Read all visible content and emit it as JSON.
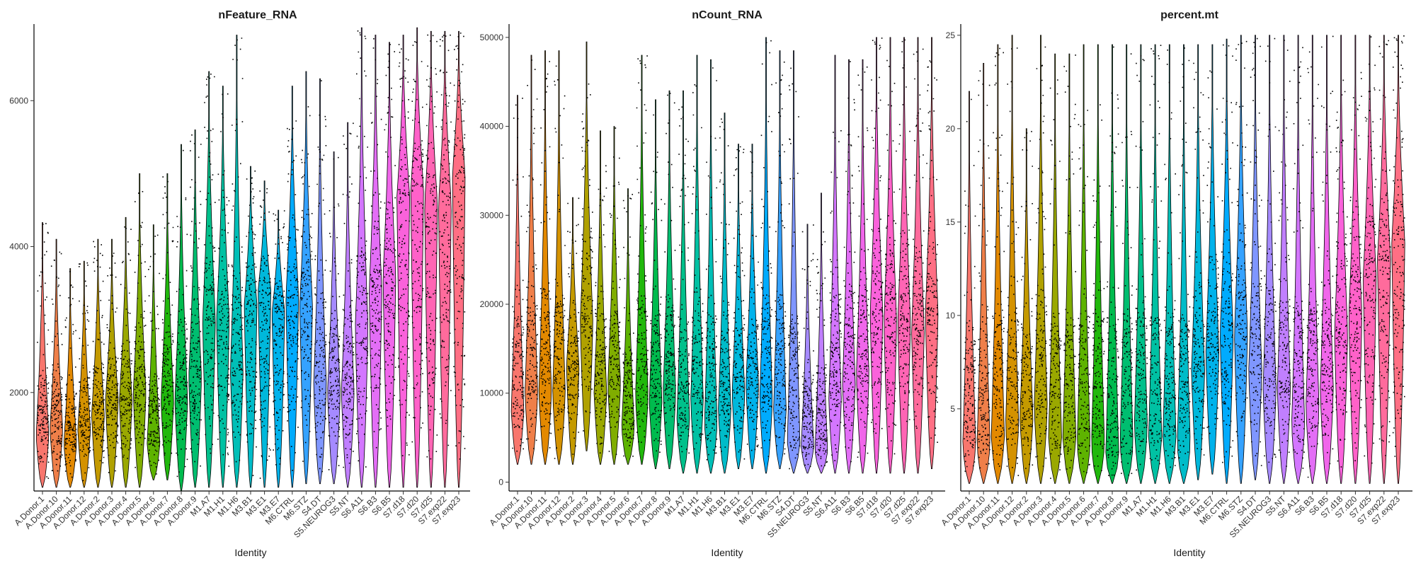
{
  "chart_data": [
    {
      "type": "violin",
      "title": "nFeature_RNA",
      "xlabel": "Identity",
      "ylabel": "",
      "ylim": [
        650,
        7050
      ],
      "yticks": [
        2000,
        4000,
        6000
      ],
      "categories": [
        "A.Donor.1",
        "A.Donor.10",
        "A.Donor.11",
        "A.Donor.12",
        "A.Donor.2",
        "A.Donor.3",
        "A.Donor.4",
        "A.Donor.5",
        "A.Donor.6",
        "A.Donor.7",
        "A.Donor.8",
        "A.Donor.9",
        "M1.A7",
        "M1.H1",
        "M1.H6",
        "M3.B1",
        "M3.E1",
        "M3.E7",
        "M6.CTRL",
        "M6.STZ",
        "S4.DT",
        "S5.NEUROG3",
        "S5.NT",
        "S6.A11",
        "S6.B3",
        "S6.B5",
        "S7.d18",
        "S7.d20",
        "S7.d25",
        "S7.exp22",
        "S7.exp23"
      ],
      "colors": [
        "#F8766D",
        "#EF7F49",
        "#E38900",
        "#D49200",
        "#C49A00",
        "#B0A100",
        "#9AA800",
        "#80AD00",
        "#5EB300",
        "#21B80C",
        "#00BB4E",
        "#00BE70",
        "#00C08B",
        "#00C1A3",
        "#00BFB7",
        "#00BCC9",
        "#00B8DB",
        "#00B2EB",
        "#00ABFD",
        "#35A2FF",
        "#7F96FF",
        "#A58AFF",
        "#C07FFF",
        "#D376FF",
        "#E36EF6",
        "#F066EA",
        "#FA62DB",
        "#FF61C9",
        "#FF65B4",
        "#FF6B9C",
        "#FF6F84"
      ],
      "series": [
        {
          "name": "min",
          "values": [
            700,
            700,
            700,
            700,
            700,
            700,
            700,
            700,
            800,
            800,
            650,
            700,
            700,
            700,
            700,
            700,
            700,
            700,
            700,
            750,
            750,
            750,
            700,
            700,
            700,
            700,
            700,
            700,
            700,
            700,
            700
          ]
        },
        {
          "name": "max",
          "values": [
            4330,
            4100,
            3700,
            3800,
            4100,
            4100,
            4400,
            5000,
            4300,
            5000,
            5400,
            5600,
            6400,
            6200,
            6900,
            5100,
            4900,
            4500,
            6200,
            6400,
            6300,
            5300,
            5700,
            7000,
            6900,
            6800,
            6900,
            7000,
            6950,
            6950,
            6950
          ]
        },
        {
          "name": "median",
          "values": [
            1400,
            1500,
            1300,
            1500,
            1700,
            1900,
            1900,
            2000,
            1300,
            1900,
            1900,
            2200,
            3000,
            3000,
            2300,
            3200,
            3400,
            3100,
            3300,
            3200,
            2100,
            2000,
            2000,
            2900,
            3400,
            3600,
            4700,
            4800,
            4600,
            4600,
            5000
          ]
        }
      ]
    },
    {
      "type": "violin",
      "title": "nCount_RNA",
      "xlabel": "Identity",
      "ylabel": "",
      "ylim": [
        -1000,
        51500
      ],
      "yticks": [
        0,
        10000,
        20000,
        30000,
        40000,
        50000
      ],
      "categories": [
        "A.Donor.1",
        "A.Donor.10",
        "A.Donor.11",
        "A.Donor.12",
        "A.Donor.2",
        "A.Donor.3",
        "A.Donor.4",
        "A.Donor.5",
        "A.Donor.6",
        "A.Donor.7",
        "A.Donor.8",
        "A.Donor.9",
        "M1.A7",
        "M1.H1",
        "M1.H6",
        "M3.B1",
        "M3.E1",
        "M3.E7",
        "M6.CTRL",
        "M6.STZ",
        "S4.DT",
        "S5.NEUROG3",
        "S5.NT",
        "S6.A11",
        "S6.B3",
        "S6.B5",
        "S7.d18",
        "S7.d20",
        "S7.d25",
        "S7.exp22",
        "S7.exp23"
      ],
      "colors": [
        "#F8766D",
        "#EF7F49",
        "#E38900",
        "#D49200",
        "#C49A00",
        "#B0A100",
        "#9AA800",
        "#80AD00",
        "#5EB300",
        "#21B80C",
        "#00BB4E",
        "#00BE70",
        "#00C08B",
        "#00C1A3",
        "#00BFB7",
        "#00BCC9",
        "#00B8DB",
        "#00B2EB",
        "#00ABFD",
        "#35A2FF",
        "#7F96FF",
        "#A58AFF",
        "#C07FFF",
        "#D376FF",
        "#E36EF6",
        "#F066EA",
        "#FA62DB",
        "#FF61C9",
        "#FF65B4",
        "#FF6B9C",
        "#FF6F84"
      ],
      "series": [
        {
          "name": "min",
          "values": [
            2000,
            2000,
            2000,
            2000,
            2000,
            3500,
            2000,
            2000,
            2000,
            2000,
            1500,
            1500,
            1000,
            1000,
            1000,
            1000,
            1500,
            1500,
            1000,
            1500,
            1000,
            1000,
            1000,
            1000,
            1000,
            1000,
            1000,
            1000,
            1000,
            1000,
            1500
          ]
        },
        {
          "name": "max",
          "values": [
            43500,
            48000,
            48500,
            48500,
            32000,
            49500,
            39500,
            40000,
            33000,
            48000,
            43000,
            44000,
            44000,
            48000,
            47500,
            41500,
            38000,
            38000,
            50000,
            48500,
            48500,
            29000,
            32500,
            48000,
            47500,
            47500,
            50000,
            50000,
            50000,
            50000,
            50000
          ]
        },
        {
          "name": "median",
          "values": [
            8000,
            10000,
            10000,
            10000,
            13000,
            18000,
            10000,
            11000,
            6000,
            9500,
            9000,
            10000,
            7000,
            9000,
            6500,
            8000,
            10000,
            11000,
            9000,
            8000,
            4500,
            4000,
            3500,
            9000,
            11000,
            12000,
            19000,
            18000,
            18000,
            17000,
            19000
          ]
        }
      ]
    },
    {
      "type": "violin",
      "title": "percent.mt",
      "xlabel": "Identity",
      "ylabel": "",
      "ylim": [
        0.6,
        25.6
      ],
      "yticks": [
        5,
        10,
        15,
        20,
        25
      ],
      "categories": [
        "A.Donor.1",
        "A.Donor.10",
        "A.Donor.11",
        "A.Donor.12",
        "A.Donor.2",
        "A.Donor.3",
        "A.Donor.4",
        "A.Donor.5",
        "A.Donor.6",
        "A.Donor.7",
        "A.Donor.8",
        "A.Donor.9",
        "M1.A7",
        "M1.H1",
        "M1.H6",
        "M3.B1",
        "M3.E1",
        "M3.E7",
        "M6.CTRL",
        "M6.STZ",
        "S4.DT",
        "S5.NEUROG3",
        "S5.NT",
        "S6.A11",
        "S6.B3",
        "S6.B5",
        "S7.d18",
        "S7.d20",
        "S7.d25",
        "S7.exp22",
        "S7.exp23"
      ],
      "colors": [
        "#F8766D",
        "#EF7F49",
        "#E38900",
        "#D49200",
        "#C49A00",
        "#B0A100",
        "#9AA800",
        "#80AD00",
        "#5EB300",
        "#21B80C",
        "#00BB4E",
        "#00BE70",
        "#00C08B",
        "#00C1A3",
        "#00BFB7",
        "#00BCC9",
        "#00B8DB",
        "#00B2EB",
        "#00ABFD",
        "#35A2FF",
        "#7F96FF",
        "#A58AFF",
        "#C07FFF",
        "#D376FF",
        "#E36EF6",
        "#F066EA",
        "#FA62DB",
        "#FF61C9",
        "#FF65B4",
        "#FF6B9C",
        "#FF6F84"
      ],
      "series": [
        {
          "name": "min",
          "values": [
            1,
            1,
            1,
            1,
            1,
            1,
            1,
            1,
            1,
            1,
            1,
            1,
            1,
            1,
            1,
            1,
            1.2,
            1.5,
            1,
            1,
            1.2,
            1,
            1,
            1,
            1,
            1,
            1,
            1,
            1,
            1,
            1
          ]
        },
        {
          "name": "max",
          "values": [
            22,
            23.5,
            24.5,
            25,
            20,
            25,
            24,
            24,
            24.5,
            24.5,
            24.5,
            24.5,
            24.5,
            24.5,
            24.5,
            24.5,
            24.5,
            24.5,
            24.8,
            25,
            25,
            25,
            25,
            25,
            25,
            25,
            25,
            25,
            25,
            25,
            25
          ]
        },
        {
          "name": "median",
          "values": [
            3,
            3,
            3.5,
            4,
            4.5,
            5,
            3.5,
            3.5,
            3,
            3,
            2.5,
            3,
            4,
            3.5,
            3.5,
            3,
            7,
            8,
            9,
            9,
            7,
            6,
            6,
            4,
            5,
            6,
            9,
            10,
            12,
            13,
            14
          ]
        }
      ]
    }
  ]
}
